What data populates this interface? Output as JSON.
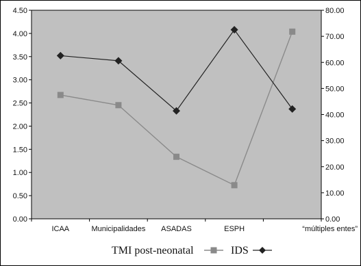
{
  "chart_data": {
    "type": "line",
    "categories": [
      "ICAA",
      "Municipalidades",
      "ASADAS",
      "ESPH",
      "“múltiples entes”"
    ],
    "series": [
      {
        "name": "TMI post-neonatal",
        "axis": "right",
        "marker": "square",
        "color": "#8a8a8a",
        "values": [
          47.5,
          43.6,
          23.8,
          12.9,
          71.8
        ]
      },
      {
        "name": "IDS",
        "axis": "left",
        "marker": "diamond",
        "color": "#222222",
        "values": [
          3.52,
          3.41,
          2.33,
          4.08,
          2.37
        ]
      }
    ],
    "y_left": {
      "ylim": [
        0,
        4.5
      ],
      "ticks": [
        "0.00",
        "0.50",
        "1.00",
        "1.50",
        "2.00",
        "2.50",
        "3.00",
        "3.50",
        "4.00",
        "4.50"
      ]
    },
    "y_right": {
      "ylim": [
        0,
        80
      ],
      "ticks": [
        "0.00",
        "10.00",
        "20.00",
        "30.00",
        "40.00",
        "50.00",
        "60.00",
        "70.00",
        "80.00"
      ]
    },
    "grid": false,
    "legend_position": "bottom",
    "plot_background": "#c0c0c0"
  }
}
